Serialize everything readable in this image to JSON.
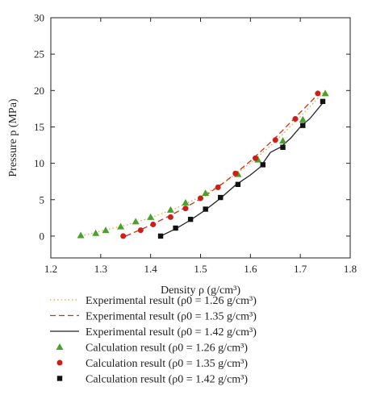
{
  "chart_data": {
    "type": "scatter",
    "xlabel": "Density ρ (g/cm³)",
    "ylabel": "Pressure p (MPa)",
    "xlim": [
      1.2,
      1.8
    ],
    "ylim": [
      -3,
      30
    ],
    "x_ticks": [
      "1.2",
      "1.3",
      "1.4",
      "1.5",
      "1.6",
      "1.7",
      "1.8"
    ],
    "y_ticks": [
      "0",
      "5",
      "10",
      "15",
      "20",
      "25",
      "30"
    ],
    "grid": false,
    "legend_placement": "below",
    "series": [
      {
        "name": "Experimental result (ρ0 = 1.26 g/cm³)",
        "kind": "line",
        "style": "dotted",
        "color": "#e8a33c",
        "x": [
          1.26,
          1.3,
          1.35,
          1.4,
          1.45,
          1.5,
          1.55,
          1.6,
          1.65,
          1.7,
          1.75
        ],
        "y": [
          0.0,
          0.7,
          1.5,
          2.5,
          3.8,
          5.4,
          7.5,
          10.0,
          13.0,
          16.4,
          20.0
        ]
      },
      {
        "name": "Experimental result (ρ0 = 1.35 g/cm³)",
        "kind": "line",
        "style": "dashed",
        "color": "#cc3311",
        "x": [
          1.35,
          1.4,
          1.45,
          1.5,
          1.55,
          1.6,
          1.65,
          1.7,
          1.74
        ],
        "y": [
          0.0,
          1.5,
          3.2,
          5.1,
          7.5,
          10.3,
          13.5,
          17.0,
          19.8
        ]
      },
      {
        "name": "Experimental result (ρ0 = 1.42 g/cm³)",
        "kind": "line",
        "style": "solid",
        "color": "#222222",
        "x": [
          1.42,
          1.45,
          1.48,
          1.51,
          1.54,
          1.57,
          1.6,
          1.62,
          1.64,
          1.66,
          1.68,
          1.7,
          1.72,
          1.745
        ],
        "y": [
          0.0,
          1.0,
          2.2,
          3.6,
          5.2,
          7.0,
          8.4,
          9.5,
          11.5,
          12.2,
          13.4,
          15.0,
          16.2,
          18.3
        ]
      },
      {
        "name": "Calculation result (ρ0 = 1.26 g/cm³)",
        "kind": "marker",
        "marker": "triangle",
        "color": "#4aa02c",
        "x": [
          1.26,
          1.29,
          1.31,
          1.34,
          1.37,
          1.4,
          1.44,
          1.47,
          1.51,
          1.575,
          1.615,
          1.665,
          1.705,
          1.75
        ],
        "y": [
          0.1,
          0.4,
          0.8,
          1.3,
          2.0,
          2.6,
          3.6,
          4.6,
          5.9,
          8.5,
          10.5,
          13.1,
          16.0,
          19.6
        ]
      },
      {
        "name": "Calculation result (ρ0 = 1.35 g/cm³)",
        "kind": "marker",
        "marker": "circle",
        "color": "#cc1f1a",
        "x": [
          1.345,
          1.38,
          1.405,
          1.44,
          1.47,
          1.5,
          1.535,
          1.57,
          1.61,
          1.65,
          1.69,
          1.735
        ],
        "y": [
          0.0,
          0.8,
          1.6,
          2.6,
          3.8,
          5.2,
          6.7,
          8.6,
          10.7,
          13.2,
          16.1,
          19.6
        ]
      },
      {
        "name": "Calculation result (ρ0 = 1.42 g/cm³)",
        "kind": "marker",
        "marker": "square",
        "color": "#111111",
        "x": [
          1.42,
          1.45,
          1.48,
          1.51,
          1.54,
          1.575,
          1.625,
          1.665,
          1.705,
          1.745
        ],
        "y": [
          0.0,
          1.1,
          2.3,
          3.7,
          5.3,
          7.1,
          9.8,
          12.2,
          15.2,
          18.5
        ]
      }
    ]
  }
}
